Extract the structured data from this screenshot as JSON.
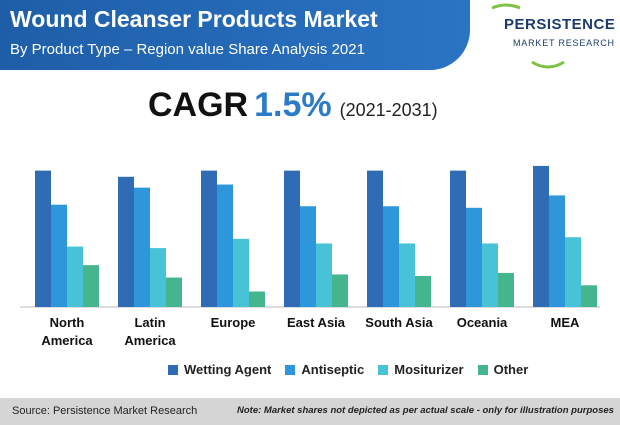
{
  "header": {
    "title": "Wound Cleanser Products Market",
    "subtitle": "By Product Type – Region value Share Analysis 2021"
  },
  "logo": {
    "line1": "PERSISTENCE",
    "line2": "MARKET RESEARCH"
  },
  "cagr": {
    "label": "CAGR",
    "value": "1.5%",
    "period": "(2021-2031)"
  },
  "colors": {
    "banner": "#2268b5",
    "wetting_agent": "#2f6cb5",
    "antiseptic": "#2e97dc",
    "mositurizer": "#47c2d6",
    "other": "#45b58d",
    "footer": "#d5d5d5"
  },
  "chart_data": {
    "type": "bar",
    "categories": [
      [
        "North",
        "America"
      ],
      [
        "Latin",
        "America"
      ],
      [
        "Europe"
      ],
      [
        "East Asia"
      ],
      [
        "South Asia"
      ],
      [
        "Oceania"
      ],
      [
        "MEA"
      ]
    ],
    "series": [
      {
        "name": "Wetting Agent",
        "color": "#2f6cb5",
        "values": [
          88,
          84,
          88,
          88,
          88,
          88,
          91
        ]
      },
      {
        "name": "Antiseptic",
        "color": "#2e97dc",
        "values": [
          66,
          77,
          79,
          65,
          65,
          64,
          72
        ]
      },
      {
        "name": "Mositurizer",
        "color": "#47c2d6",
        "values": [
          39,
          38,
          44,
          41,
          41,
          41,
          45
        ]
      },
      {
        "name": "Other",
        "color": "#45b58d",
        "values": [
          27,
          19,
          10,
          21,
          20,
          22,
          14
        ]
      }
    ],
    "ylim": [
      0,
      100
    ],
    "grid": false,
    "legend_position": "bottom"
  },
  "footer": {
    "source": "Source: Persistence Market Research",
    "note": "Note: Market shares not depicted as per actual scale - only for illustration purposes"
  }
}
